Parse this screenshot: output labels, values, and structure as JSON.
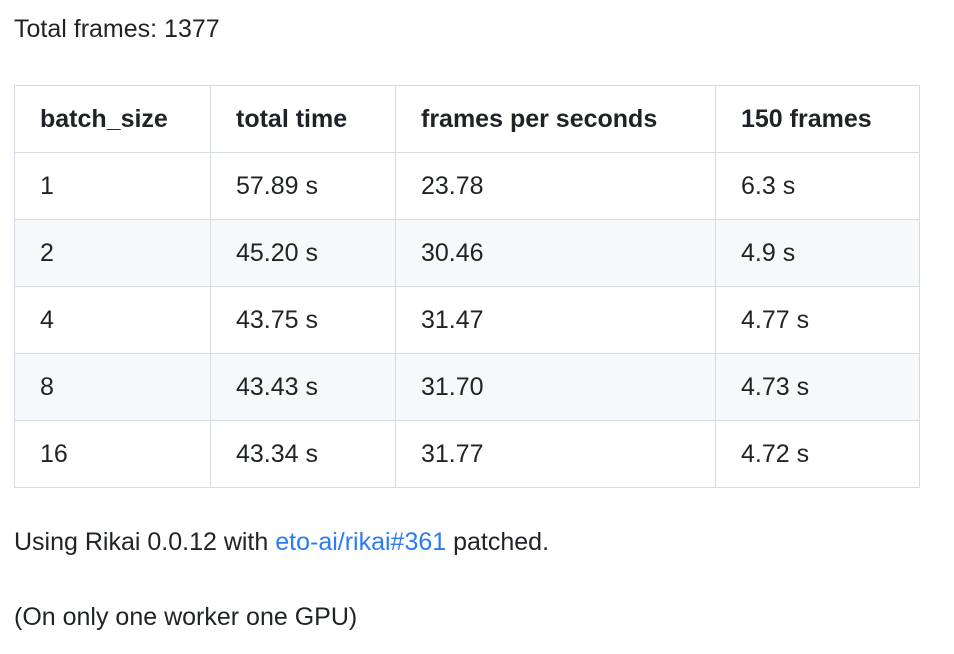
{
  "colors": {
    "background": "#ffffff",
    "text": "#1f2328",
    "table_border": "#d5dbe1",
    "alt_row_background": "#f6f8fa",
    "link": "#2b7bf5"
  },
  "intro": {
    "text": "Total frames: 1377"
  },
  "table": {
    "headers": [
      "batch_size",
      "total time",
      "frames per seconds",
      "150 frames"
    ],
    "rows": [
      [
        "1",
        "57.89 s",
        "23.78",
        "6.3 s"
      ],
      [
        "2",
        "45.20 s",
        "30.46",
        "4.9 s"
      ],
      [
        "4",
        "43.75 s",
        "31.47",
        "4.77 s"
      ],
      [
        "8",
        "43.43 s",
        "31.70",
        "4.73 s"
      ],
      [
        "16",
        "43.34 s",
        "31.77",
        "4.72 s"
      ]
    ]
  },
  "footer": {
    "line1_prefix": "Using Rikai 0.0.12 with ",
    "link_text": "eto-ai/rikai#361",
    "line1_suffix": " patched.",
    "line2": "(On only one worker one GPU)"
  }
}
